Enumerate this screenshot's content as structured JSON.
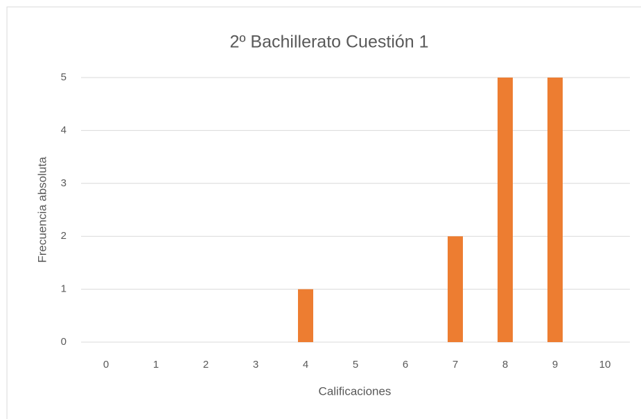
{
  "chart_data": {
    "type": "bar",
    "title": "2º Bachillerato  Cuestión 1",
    "x_label": "Calificaciones",
    "y_label": "Frecuencia absoluta",
    "categories": [
      "0",
      "1",
      "2",
      "3",
      "4",
      "5",
      "6",
      "7",
      "8",
      "9",
      "10"
    ],
    "values": [
      0,
      0,
      0,
      0,
      1,
      0,
      0,
      2,
      5,
      5,
      0
    ],
    "color": "#ed7d31",
    "ylim": [
      0,
      5
    ],
    "yticks": [
      0,
      1,
      2,
      3,
      4,
      5
    ],
    "grid": true
  }
}
